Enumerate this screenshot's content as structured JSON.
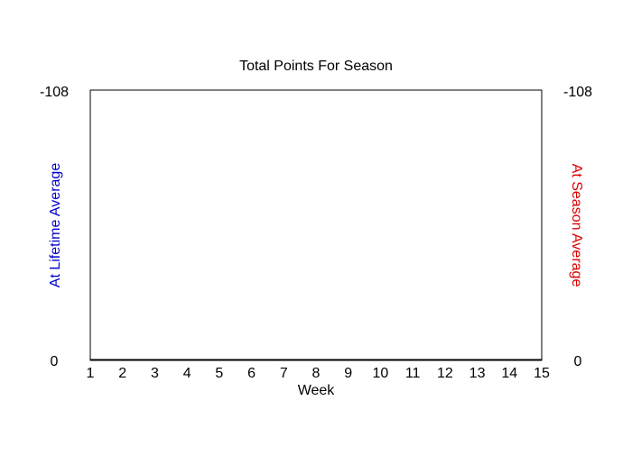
{
  "chart_data": {
    "type": "line",
    "title": "Total Points For Season",
    "xlabel": "Week",
    "ylabel_left": "At Lifetime Average",
    "ylabel_right": "At Season Average",
    "x": [
      1,
      2,
      3,
      4,
      5,
      6,
      7,
      8,
      9,
      10,
      11,
      12,
      13,
      14,
      15
    ],
    "xlim": [
      1,
      15
    ],
    "ylim_left": [
      0,
      -108
    ],
    "ylim_right": [
      0,
      -108
    ],
    "y_ticks_left": [
      "0",
      "-108"
    ],
    "y_ticks_right": [
      "0",
      "-108"
    ],
    "series": [],
    "grid": false,
    "colors": {
      "left_axis_label": "#0000cc",
      "right_axis_label": "#dd0000",
      "text": "#000000",
      "frame": "#000000",
      "background": "#ffffff"
    }
  }
}
